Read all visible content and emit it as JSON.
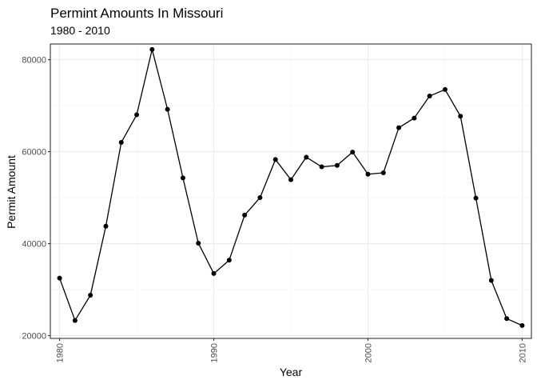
{
  "chart_data": {
    "type": "line",
    "title": "Permint Amounts In Missouri",
    "subtitle": "1980 - 2010",
    "xlabel": "Year",
    "ylabel": "Permit Amount",
    "xlim": [
      1979.4,
      2010.6
    ],
    "ylim": [
      19400,
      83400
    ],
    "x_ticks": [
      1980,
      1990,
      2000,
      2010
    ],
    "x_tick_labels": [
      "1980",
      "1990",
      "2000",
      "2010"
    ],
    "y_ticks": [
      20000,
      40000,
      60000,
      80000
    ],
    "y_tick_labels": [
      "20000",
      "40000",
      "60000",
      "80000"
    ],
    "grid": true,
    "legend": "none",
    "line_color": "#000000",
    "x": [
      1980,
      1981,
      1982,
      1983,
      1984,
      1985,
      1986,
      1987,
      1988,
      1989,
      1990,
      1991,
      1992,
      1993,
      1994,
      1995,
      1996,
      1997,
      1998,
      1999,
      2000,
      2001,
      2002,
      2003,
      2004,
      2005,
      2006,
      2007,
      2008,
      2009,
      2010
    ],
    "y": [
      32500,
      23300,
      28800,
      43800,
      62000,
      68000,
      82200,
      69200,
      54300,
      40100,
      33500,
      36400,
      46200,
      50000,
      58300,
      53900,
      58800,
      56700,
      57000,
      59900,
      55100,
      55400,
      65200,
      67300,
      72100,
      73500,
      67700,
      49900,
      32000,
      23700,
      22200
    ]
  }
}
